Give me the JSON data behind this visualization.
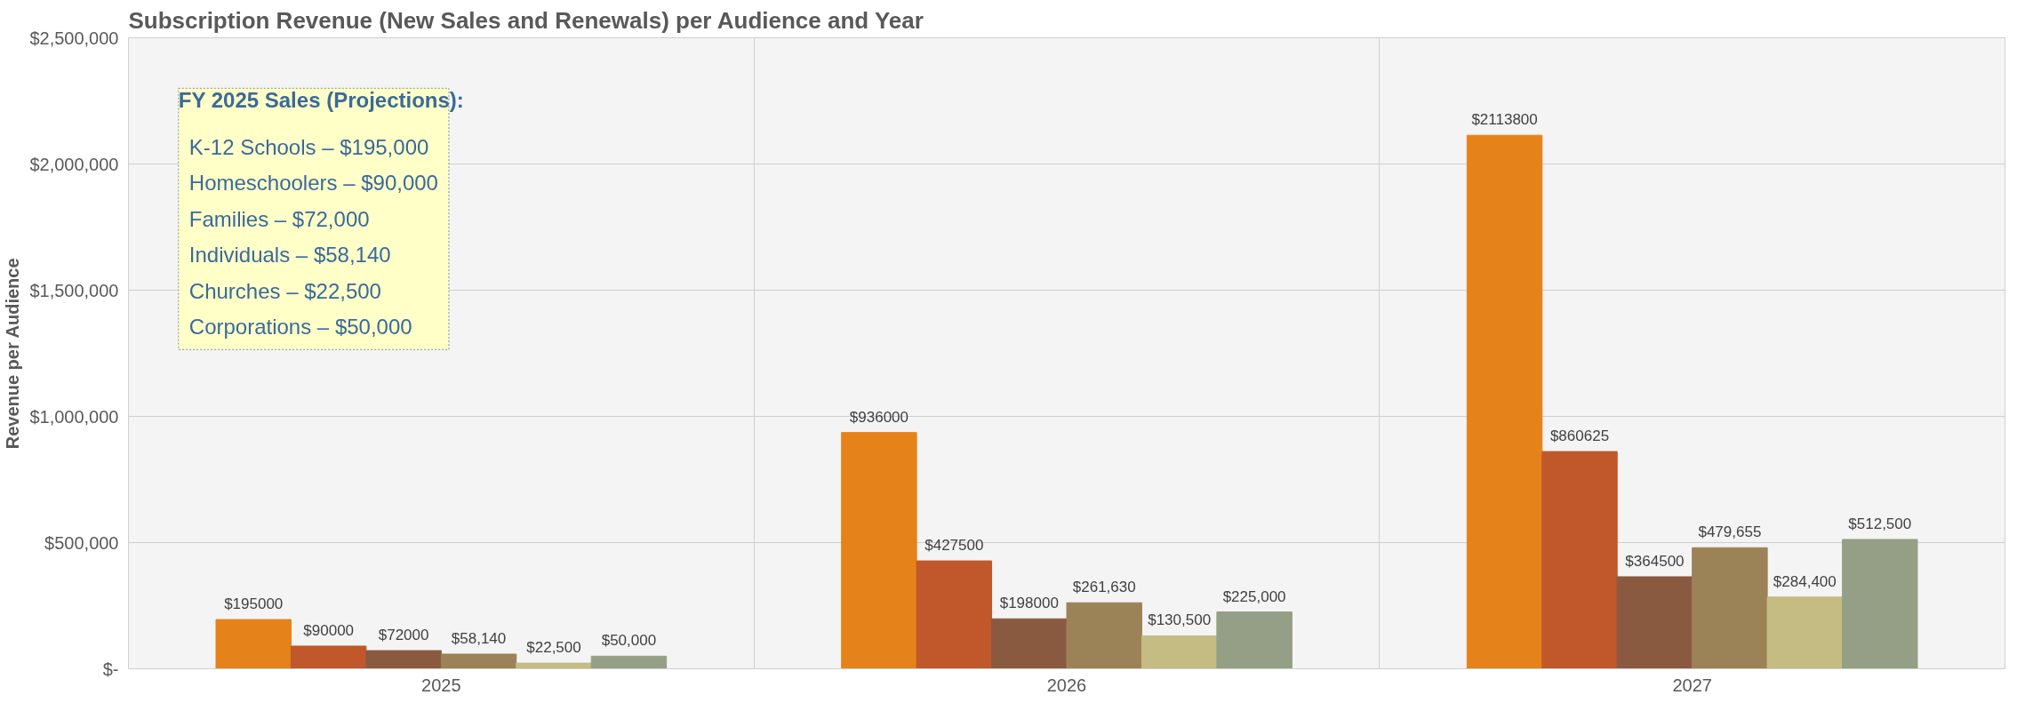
{
  "chart_data": {
    "type": "bar",
    "title": "Subscription Revenue (New Sales and Renewals) per Audience and Year",
    "ylabel": "Revenue per Audience",
    "categories": [
      "2025",
      "2026",
      "2027"
    ],
    "series": [
      {
        "color": "#e6821a",
        "values": [
          195000,
          936000,
          2113800
        ],
        "value_labels": [
          "$195000",
          "$936000",
          "$2113800"
        ]
      },
      {
        "color": "#c0582c",
        "values": [
          90000,
          427500,
          860625
        ],
        "value_labels": [
          "$90000",
          "$427500",
          "$860625"
        ]
      },
      {
        "color": "#8a5a40",
        "values": [
          72000,
          198000,
          364500
        ],
        "value_labels": [
          "$72000",
          "$198000",
          "$364500"
        ]
      },
      {
        "color": "#9c8257",
        "values": [
          58140,
          261630,
          479655
        ],
        "value_labels": [
          "$58,140",
          "$261,630",
          "$479,655"
        ]
      },
      {
        "color": "#c4bc82",
        "values": [
          22500,
          130500,
          284400
        ],
        "value_labels": [
          "$22,500",
          "$130,500",
          "$284,400"
        ]
      },
      {
        "color": "#949f86",
        "values": [
          50000,
          225000,
          512500
        ],
        "value_labels": [
          "$50,000",
          "$225,000",
          "$512,500"
        ]
      }
    ],
    "ylim": [
      0,
      2500000
    ],
    "yticks": [
      {
        "value": 0,
        "label": "$-"
      },
      {
        "value": 500000,
        "label": "$500,000"
      },
      {
        "value": 1000000,
        "label": "$1,000,000"
      },
      {
        "value": 1500000,
        "label": "$1,500,000"
      },
      {
        "value": 2000000,
        "label": "$2,000,000"
      },
      {
        "value": 2500000,
        "label": "$2,500,000"
      }
    ],
    "grid": true,
    "annotations": [
      "FY 2025 Sales (Projections):",
      "K-12 Schools – $195,000",
      "Homeschoolers – $90,000",
      "Families – $72,000",
      "Individuals – $58,140",
      "Churches – $22,500",
      "Corporations – $50,000"
    ]
  }
}
